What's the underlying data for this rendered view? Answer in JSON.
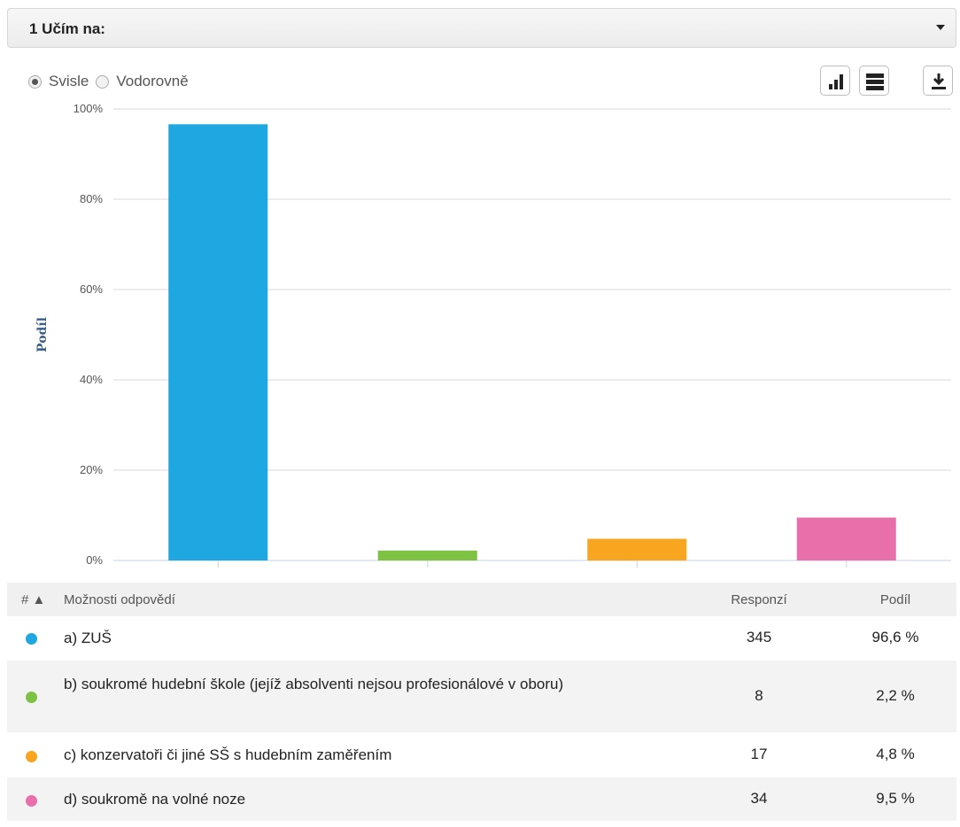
{
  "header": {
    "title": "1 Učím na:"
  },
  "orientation": {
    "vertical_label": "Svisle",
    "horizontal_label": "Vodorovně",
    "selected": "vertical"
  },
  "toolbar": {
    "bar_icon": "bar-chart-icon",
    "table_icon": "table-icon",
    "download_icon": "download-icon"
  },
  "colors": {
    "blue": "#1ea7e1",
    "green": "#7dc243",
    "orange": "#f8a51f",
    "pink": "#e86faa"
  },
  "chart_data": {
    "type": "bar",
    "categories": [
      "a) ZUŠ",
      "b) soukromé hudební škole (jejíž absolventi nejsou profesionálové v oboru)",
      "c) konzervatoři či jiné SŠ s hudebním zaměřením",
      "d) soukromě na volné noze"
    ],
    "values": [
      96.6,
      2.2,
      4.8,
      9.5
    ],
    "colors": [
      "#1ea7e1",
      "#7dc243",
      "#f8a51f",
      "#e86faa"
    ],
    "ylabel": "Podíl",
    "ylim": [
      0,
      100
    ],
    "yticks": [
      "0%",
      "20%",
      "40%",
      "60%",
      "80%",
      "100%"
    ],
    "grid": true
  },
  "table": {
    "headers": {
      "hash": "# ▲",
      "option": "Možnosti odpovědí",
      "responses": "Responzí",
      "share": "Podíl"
    },
    "rows": [
      {
        "option": "a) ZUŠ",
        "responses": "345",
        "share": "96,6 %"
      },
      {
        "option": "b) soukromé hudební škole (jejíž absolventi nejsou profesionálové v oboru)",
        "responses": "8",
        "share": "2,2 %"
      },
      {
        "option": "c) konzervatoři či jiné SŠ s hudebním zaměřením",
        "responses": "17",
        "share": "4,8 %"
      },
      {
        "option": "d) soukromě na volné noze",
        "responses": "34",
        "share": "9,5 %"
      }
    ]
  }
}
